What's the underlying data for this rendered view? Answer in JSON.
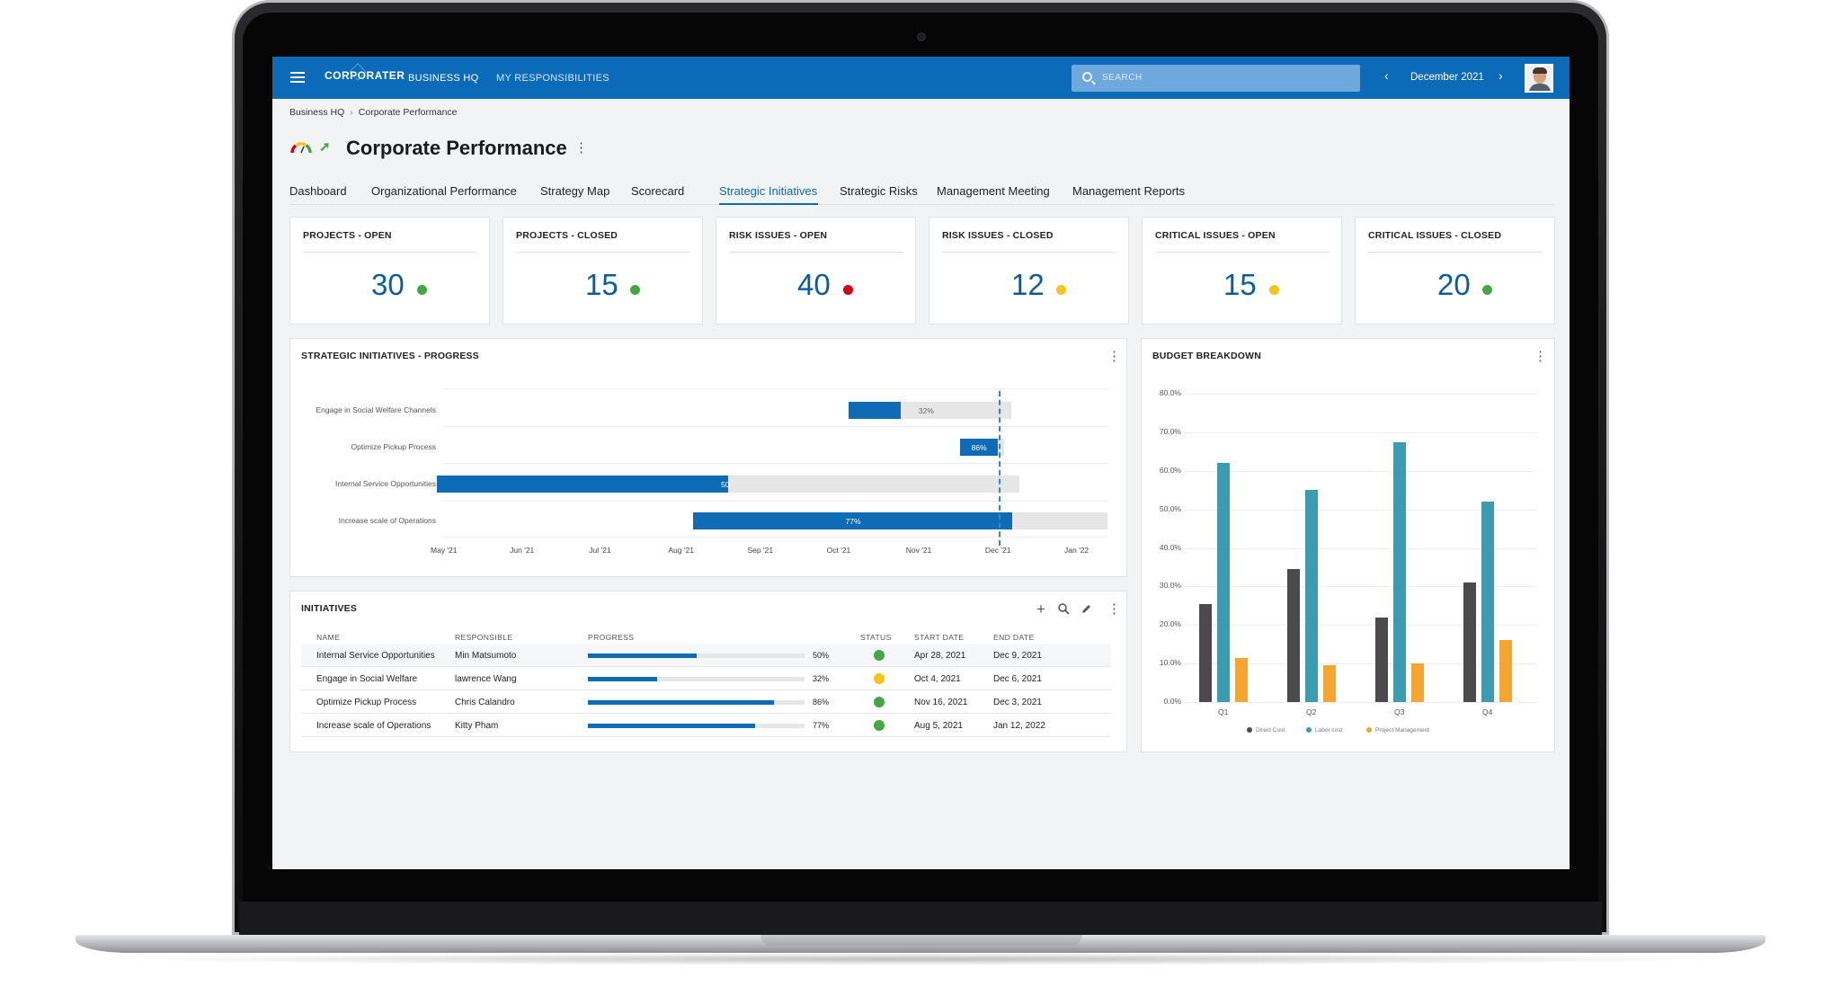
{
  "app": {
    "logo": "CORPORATER",
    "nav": [
      "BUSINESS HQ",
      "MY RESPONSIBILITIES"
    ],
    "search_placeholder": "SEARCH",
    "period": "December 2021"
  },
  "breadcrumb": [
    "Business HQ",
    "Corporate Performance"
  ],
  "page": {
    "title": "Corporate Performance"
  },
  "tabs": [
    "Dashboard",
    "Organizational Performance",
    "Strategy Map",
    "Scorecard",
    "Strategic Initiatives",
    "Strategic Risks",
    "Management Meeting",
    "Management Reports"
  ],
  "active_tab": "Strategic Initiatives",
  "kpis": [
    {
      "label": "PROJECTS - OPEN",
      "value": "30",
      "status_color": "#43a843"
    },
    {
      "label": "PROJECTS - CLOSED",
      "value": "15",
      "status_color": "#43a843"
    },
    {
      "label": "RISK ISSUES - OPEN",
      "value": "40",
      "status_color": "#d0021b"
    },
    {
      "label": "RISK ISSUES - CLOSED",
      "value": "12",
      "status_color": "#f5c518"
    },
    {
      "label": "CRITICAL ISSUES - OPEN",
      "value": "15",
      "status_color": "#f5c518"
    },
    {
      "label": "CRITICAL ISSUES - CLOSED",
      "value": "20",
      "status_color": "#43a843"
    }
  ],
  "progress_panel": {
    "title": "STRATEGIC INITIATIVES - PROGRESS",
    "x_ticks": [
      "May '21",
      "Jun '21",
      "Jul '21",
      "Aug '21",
      "Sep '21",
      "Oct '21",
      "Nov '21",
      "Dec '21",
      "Jan '22"
    ],
    "rows": [
      {
        "name": "Engage in Social Welfare Channels",
        "pct": "32%"
      },
      {
        "name": "Optimize Pickup Process",
        "pct": "86%"
      },
      {
        "name": "Internal Service Opportunities",
        "pct": "50"
      },
      {
        "name": "Increase scale of Operations",
        "pct": "77%"
      }
    ]
  },
  "initiatives": {
    "title": "INITIATIVES",
    "columns": [
      "NAME",
      "RESPONSIBLE",
      "PROGRESS",
      "STATUS",
      "START DATE",
      "END DATE"
    ],
    "rows": [
      {
        "name": "Internal Service Opportunities",
        "responsible": "Min Matsumoto",
        "progress": 50,
        "progress_text": "50%",
        "status_color": "#43a843",
        "start": "Apr 28, 2021",
        "end": "Dec 9, 2021"
      },
      {
        "name": "Engage in Social Welfare",
        "responsible": "lawrence Wang",
        "progress": 32,
        "progress_text": "32%",
        "status_color": "#f5c518",
        "start": "Oct 4, 2021",
        "end": "Dec 6, 2021"
      },
      {
        "name": "Optimize Pickup Process",
        "responsible": "Chris Calandro",
        "progress": 86,
        "progress_text": "86%",
        "status_color": "#43a843",
        "start": "Nov 16, 2021",
        "end": "Dec 3, 2021"
      },
      {
        "name": "Increase scale of Operations",
        "responsible": "Kitty Pham",
        "progress": 77,
        "progress_text": "77%",
        "status_color": "#43a843",
        "start": "Aug 5, 2021",
        "end": "Jan 12, 2022"
      }
    ]
  },
  "budget": {
    "title": "BUDGET BREAKDOWN",
    "legend": [
      "Direct Cost",
      "Labor cost",
      "Project Management"
    ]
  },
  "chart_data": [
    {
      "type": "bar",
      "orientation": "horizontal-gantt",
      "categories": [
        "Engage in Social Welfare Channels",
        "Optimize Pickup Process",
        "Internal Service Opportunities",
        "Increase scale of Operations"
      ],
      "x_ticks": [
        "May '21",
        "Jun '21",
        "Jul '21",
        "Aug '21",
        "Sep '21",
        "Oct '21",
        "Nov '21",
        "Dec '21",
        "Jan '22"
      ],
      "start": [
        "2021-10-04",
        "2021-11-16",
        "2021-04-28",
        "2021-08-05"
      ],
      "end": [
        "2021-12-06",
        "2021-12-03",
        "2021-12-09",
        "2022-01-12"
      ],
      "progress": [
        32,
        86,
        50,
        77
      ],
      "today": "2021-12-01",
      "colors": {
        "done": "#0f6bb5",
        "remaining": "#e6e6e6",
        "today": "#3b82d0"
      }
    },
    {
      "type": "bar",
      "categories": [
        "Q1",
        "Q2",
        "Q3",
        "Q4"
      ],
      "series": [
        {
          "name": "Direct Cost",
          "values": [
            25.5,
            34.5,
            22.0,
            31.0
          ],
          "color": "#4b4b4d"
        },
        {
          "name": "Labor cost",
          "values": [
            62.0,
            55.0,
            67.5,
            52.0
          ],
          "color": "#3b9bb0"
        },
        {
          "name": "Project Management",
          "values": [
            11.5,
            9.5,
            10.0,
            16.0
          ],
          "color": "#f4a630"
        }
      ],
      "y_ticks": [
        "0.0%",
        "10.0%",
        "20.0%",
        "30.0%",
        "40.0%",
        "50.0%",
        "60.0%",
        "70.0%",
        "80.0%"
      ],
      "ylim": [
        0,
        80
      ],
      "legend": "bottom"
    }
  ]
}
